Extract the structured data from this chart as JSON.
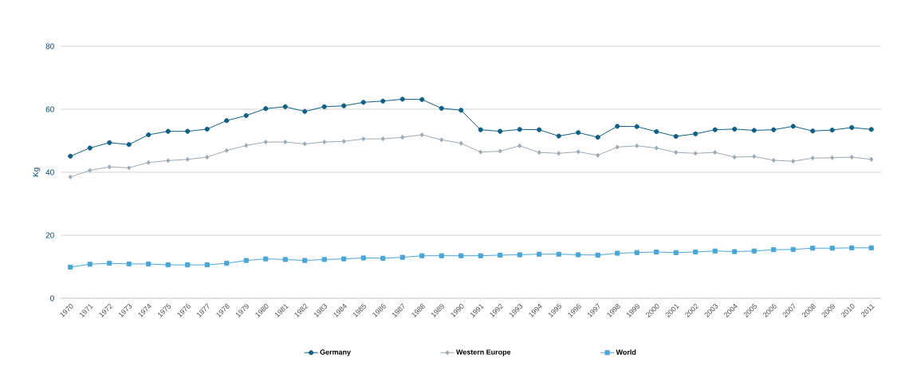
{
  "chart_data": {
    "type": "line",
    "ylabel": "Kg",
    "categories": [
      "1970",
      "1971",
      "1972",
      "1973",
      "1974",
      "1975",
      "1976",
      "1977",
      "1978",
      "1979",
      "1980",
      "1981",
      "1982",
      "1983",
      "1984",
      "1985",
      "1986",
      "1987",
      "1988",
      "1989",
      "1990",
      "1991",
      "1992",
      "1993",
      "1994",
      "1995",
      "1996",
      "1997",
      "1998",
      "1999",
      "2000",
      "2001",
      "2002",
      "2003",
      "2004",
      "2005",
      "2006",
      "2007",
      "2008",
      "2009",
      "2010",
      "2011"
    ],
    "series": [
      {
        "name": "Germany",
        "color": "#0f5f86",
        "marker": "circle",
        "values": [
          45.1,
          47.7,
          49.4,
          48.8,
          51.9,
          53.0,
          53.0,
          53.7,
          56.4,
          58.0,
          60.2,
          60.8,
          59.3,
          60.8,
          61.1,
          62.2,
          62.6,
          63.2,
          63.1,
          60.3,
          59.7,
          53.5,
          53.0,
          53.6,
          53.5,
          51.5,
          52.6,
          51.1,
          54.6,
          54.5,
          52.9,
          51.4,
          52.2,
          53.5,
          53.7,
          53.3,
          53.5,
          54.6,
          53.1,
          53.4,
          54.2,
          53.6
        ]
      },
      {
        "name": "Western Europe",
        "color": "#9aaab6",
        "marker": "diamond",
        "values": [
          38.5,
          40.6,
          41.7,
          41.4,
          43.1,
          43.7,
          44.1,
          44.8,
          46.9,
          48.5,
          49.6,
          49.6,
          49.0,
          49.6,
          49.8,
          50.6,
          50.6,
          51.1,
          51.9,
          50.3,
          49.2,
          46.4,
          46.7,
          48.4,
          46.3,
          46.0,
          46.5,
          45.4,
          48.0,
          48.4,
          47.7,
          46.3,
          46.0,
          46.3,
          44.8,
          45.0,
          43.8,
          43.5,
          44.5,
          44.6,
          44.8,
          44.1
        ]
      },
      {
        "name": "World",
        "color": "#4aa6d6",
        "marker": "square",
        "values": [
          9.9,
          10.8,
          11.1,
          10.9,
          10.9,
          10.6,
          10.6,
          10.6,
          11.1,
          12.0,
          12.5,
          12.3,
          12.0,
          12.3,
          12.5,
          12.8,
          12.7,
          13.0,
          13.5,
          13.5,
          13.5,
          13.5,
          13.7,
          13.8,
          14.0,
          14.0,
          13.8,
          13.7,
          14.3,
          14.5,
          14.7,
          14.5,
          14.7,
          15.0,
          14.8,
          15.0,
          15.4,
          15.5,
          15.9,
          15.9,
          16.0,
          16.0
        ]
      }
    ],
    "ylim": [
      0,
      80
    ],
    "yticks": [
      0,
      20,
      40,
      60,
      80
    ],
    "grid": "y",
    "legend": "bottom",
    "line_style": "solid"
  }
}
